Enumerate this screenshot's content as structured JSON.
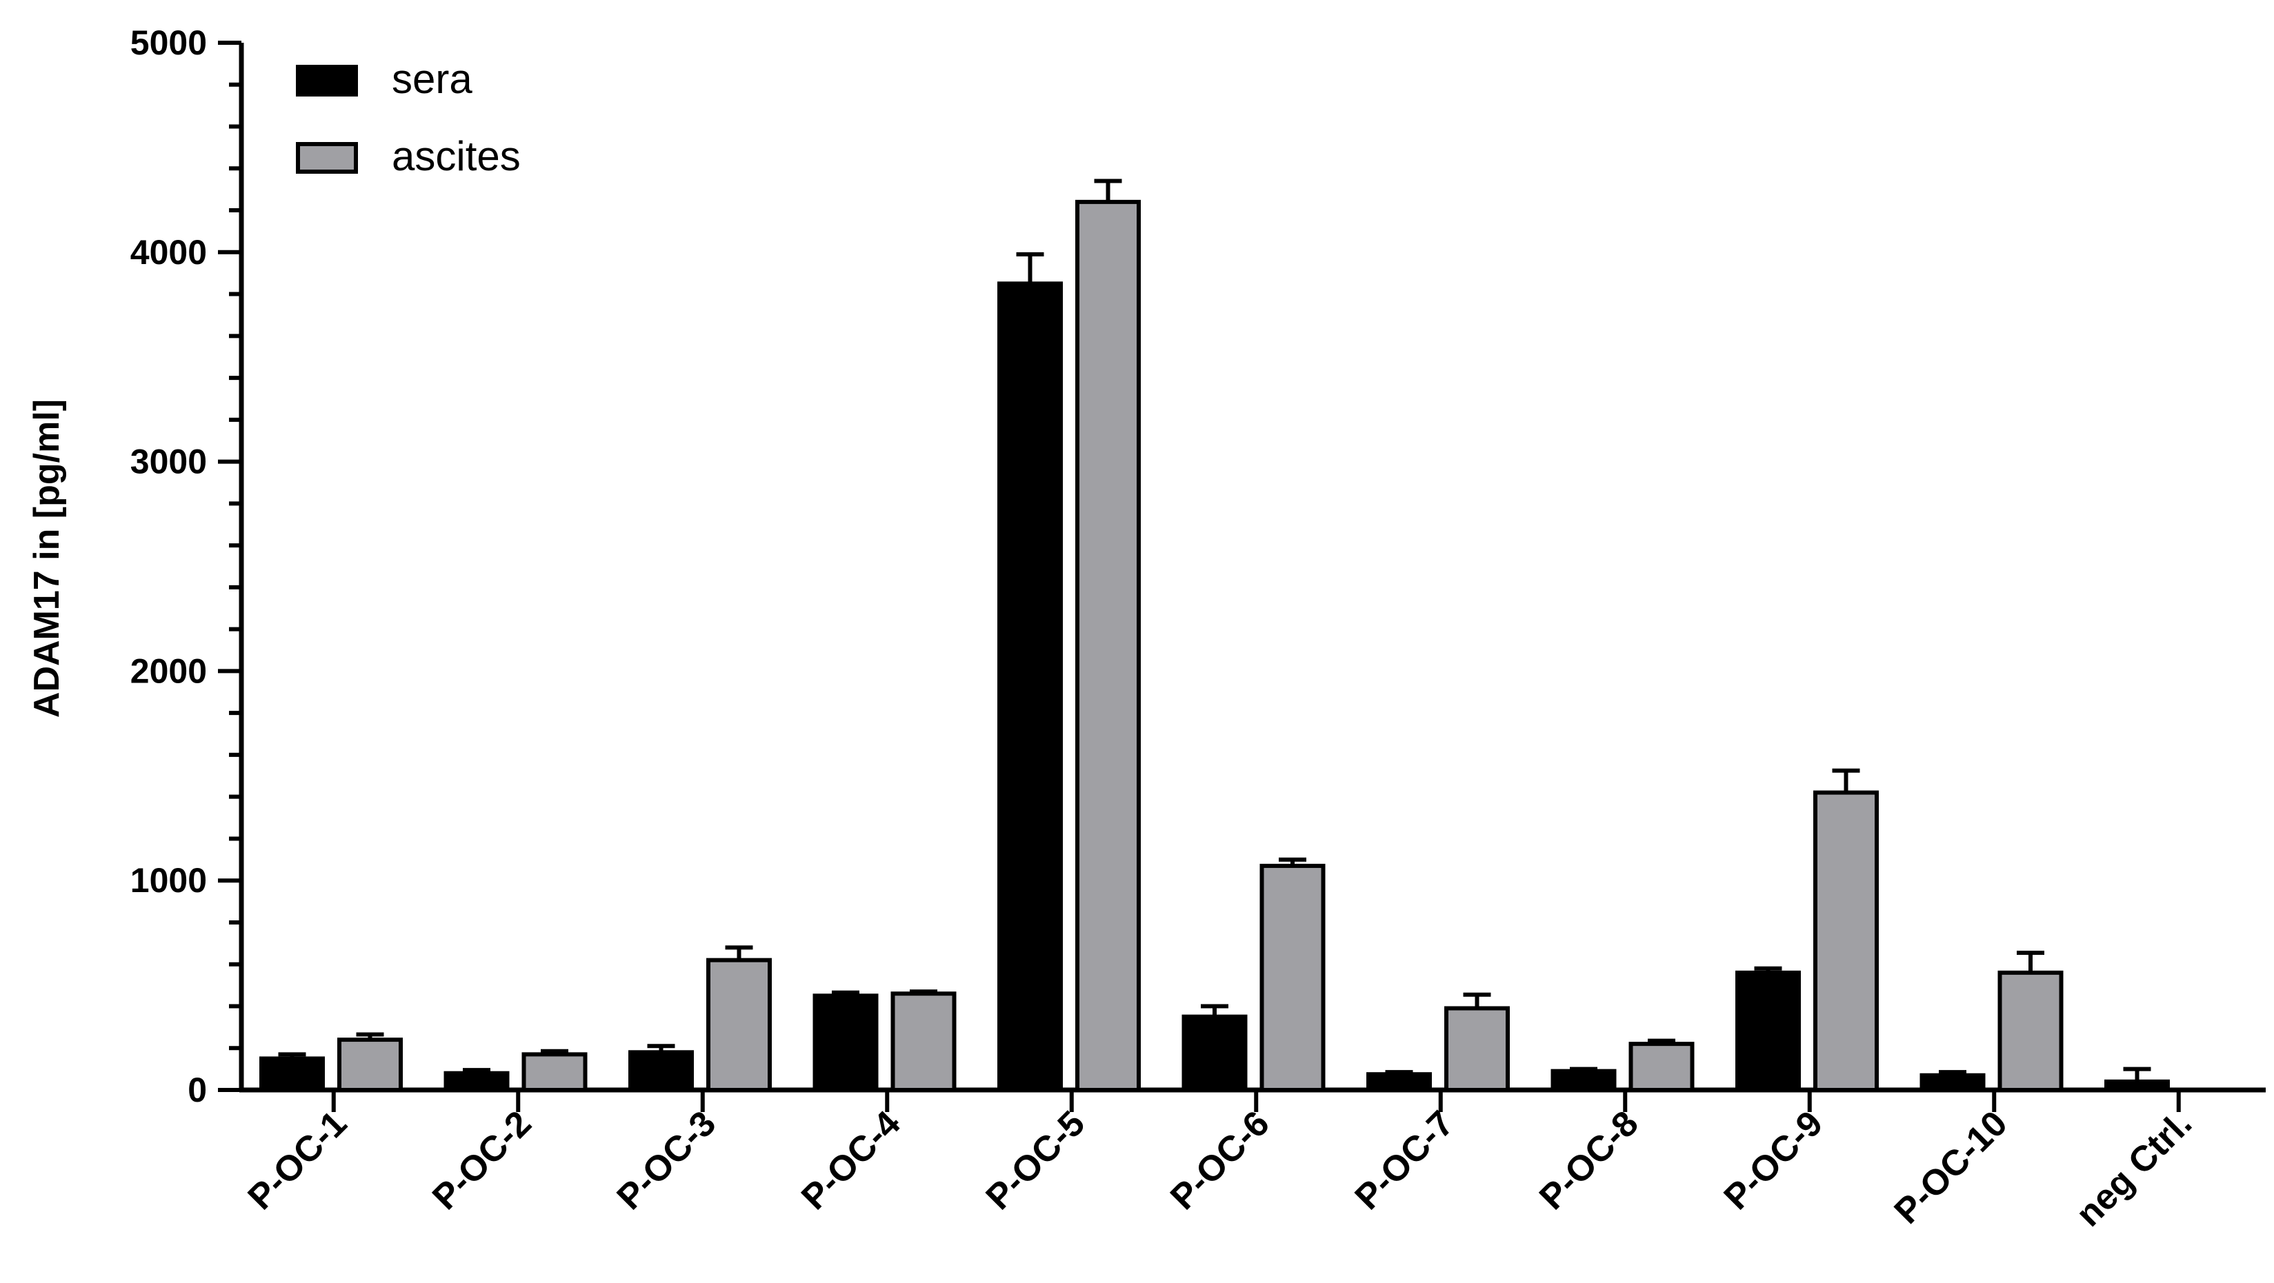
{
  "chart_data": {
    "type": "bar",
    "ylabel": "ADAM17 in [pg/ml]",
    "xlabel": "",
    "ylim": [
      0,
      5000
    ],
    "yticks": [
      0,
      1000,
      2000,
      3000,
      4000,
      5000
    ],
    "yticks_labels": [
      "0",
      "1000",
      "2000",
      "3000",
      "4000",
      "5000"
    ],
    "minor_step": 200,
    "grid": false,
    "legend_position": "top-left",
    "categories": [
      "P-OC-1",
      "P-OC-2",
      "P-OC-3",
      "P-OC-4",
      "P-OC-5",
      "P-OC-6",
      "P-OC-7",
      "P-OC-8",
      "P-OC-9",
      "P-OC-10",
      "neg Ctrl."
    ],
    "series": [
      {
        "name": "sera",
        "color": "#000000",
        "values": [
          150,
          80,
          180,
          450,
          3850,
          350,
          75,
          90,
          560,
          70,
          40
        ],
        "errors": [
          20,
          15,
          30,
          15,
          140,
          50,
          10,
          10,
          20,
          15,
          60
        ]
      },
      {
        "name": "ascites",
        "color": "#a0a0a4",
        "values": [
          240,
          170,
          620,
          460,
          4240,
          1070,
          390,
          220,
          1420,
          560,
          null
        ],
        "errors": [
          25,
          15,
          60,
          10,
          100,
          30,
          65,
          15,
          105,
          95,
          null
        ]
      }
    ]
  }
}
